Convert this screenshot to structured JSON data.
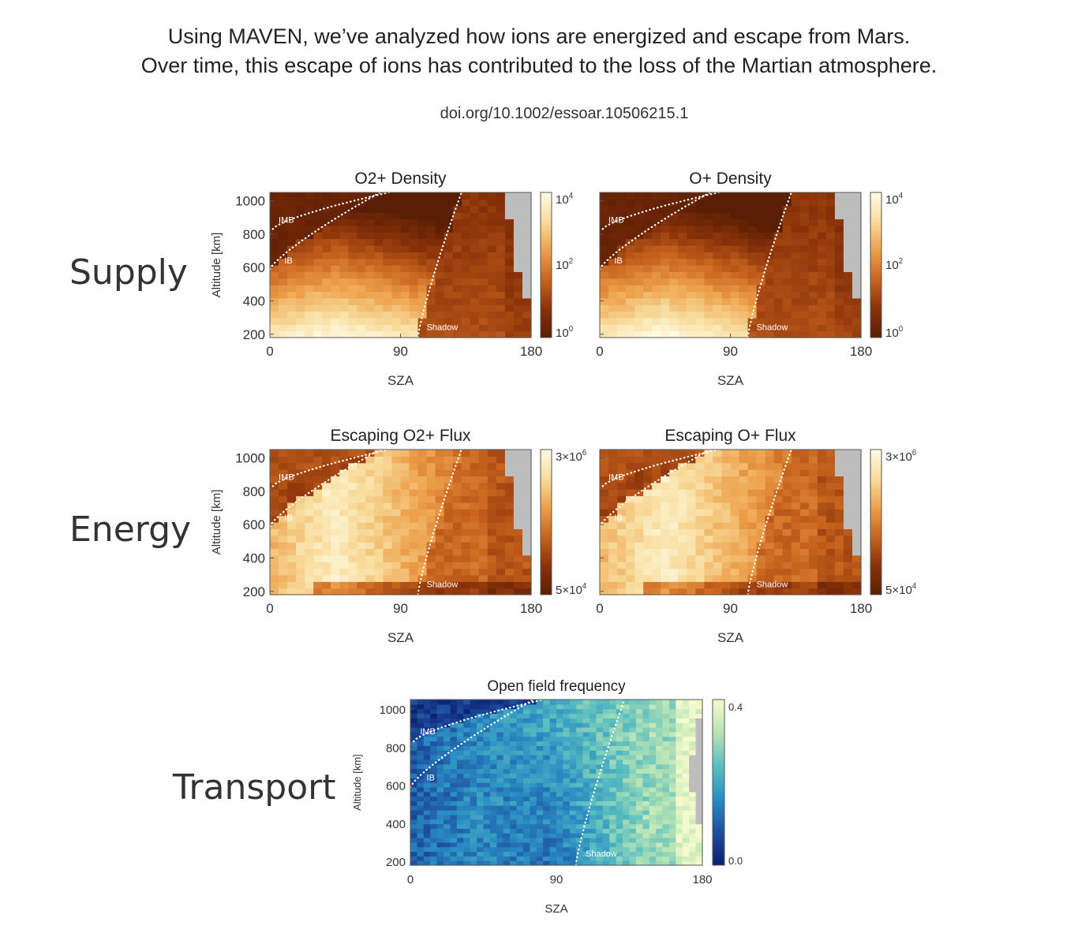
{
  "headline": {
    "line1": "Using MAVEN, we’ve analyzed how ions are energized and escape from Mars.",
    "line2": "Over time, this escape of ions has contributed to the loss of the Martian atmosphere."
  },
  "doi": "doi.org/10.1002/essoar.10506215.1",
  "row_labels": {
    "supply": "Supply",
    "energy": "Energy",
    "transport": "Transport"
  },
  "colors": {
    "heat_dark": "#5a1e04",
    "heat_mid": "#c8641e",
    "heat_light": "#fffbe6",
    "blue_dark": "#0b1f70",
    "blue_mid": "#2a8ec4",
    "blue_light": "#f6fbcc",
    "no_data": "#bdbdbd",
    "curve": "#ffffff"
  },
  "chart_data": [
    {
      "id": "o2-density",
      "type": "heatmap",
      "title": "O2+ Density",
      "xlabel": "SZA",
      "ylabel": "Altitude [km]",
      "xlim": [
        0,
        180
      ],
      "ylim": [
        180,
        1050
      ],
      "xticks": [
        "0",
        "90",
        "180"
      ],
      "yticks": [
        "200",
        "400",
        "600",
        "800",
        "1000"
      ],
      "colorbar": {
        "scale": "log",
        "labels": [
          "10^4",
          "10^2",
          "10^0"
        ]
      },
      "annotations": [
        "IMB",
        "IB",
        "Shadow"
      ],
      "colormap": "heat",
      "pattern": "density"
    },
    {
      "id": "o-density",
      "type": "heatmap",
      "title": "O+ Density",
      "xlabel": "SZA",
      "ylabel": "",
      "xlim": [
        0,
        180
      ],
      "ylim": [
        180,
        1050
      ],
      "xticks": [
        "0",
        "90",
        "180"
      ],
      "yticks": [],
      "colorbar": {
        "scale": "log",
        "labels": [
          "10^4",
          "10^2",
          "10^0"
        ]
      },
      "annotations": [
        "IMB",
        "IB",
        "Shadow"
      ],
      "colormap": "heat",
      "pattern": "density"
    },
    {
      "id": "o2-flux",
      "type": "heatmap",
      "title": "Escaping O2+ Flux",
      "xlabel": "SZA",
      "ylabel": "Altitude [km]",
      "xlim": [
        0,
        180
      ],
      "ylim": [
        180,
        1050
      ],
      "xticks": [
        "0",
        "90",
        "180"
      ],
      "yticks": [
        "200",
        "400",
        "600",
        "800",
        "1000"
      ],
      "colorbar": {
        "scale": "log",
        "labels": [
          "3×10^6",
          "5×10^4"
        ]
      },
      "annotations": [
        "IMB",
        "IB",
        "Shadow"
      ],
      "colormap": "heat",
      "pattern": "flux"
    },
    {
      "id": "o-flux",
      "type": "heatmap",
      "title": "Escaping O+ Flux",
      "xlabel": "SZA",
      "ylabel": "",
      "xlim": [
        0,
        180
      ],
      "ylim": [
        180,
        1050
      ],
      "xticks": [
        "0",
        "90",
        "180"
      ],
      "yticks": [],
      "colorbar": {
        "scale": "log",
        "labels": [
          "3×10^6",
          "5×10^4"
        ]
      },
      "annotations": [
        "IMB",
        "IB",
        "Shadow"
      ],
      "colormap": "heat",
      "pattern": "flux"
    },
    {
      "id": "open-field",
      "type": "heatmap",
      "title": "Open field frequency",
      "xlabel": "SZA",
      "ylabel": "Altitude [km]",
      "xlim": [
        0,
        180
      ],
      "ylim": [
        180,
        1050
      ],
      "xticks": [
        "0",
        "90",
        "180"
      ],
      "yticks": [
        "200",
        "400",
        "600",
        "800",
        "1000"
      ],
      "colorbar": {
        "scale": "linear",
        "labels": [
          "0.4",
          "0.0"
        ]
      },
      "annotations": [
        "IMB",
        "IB",
        "Shadow"
      ],
      "colormap": "blue",
      "pattern": "open"
    }
  ]
}
